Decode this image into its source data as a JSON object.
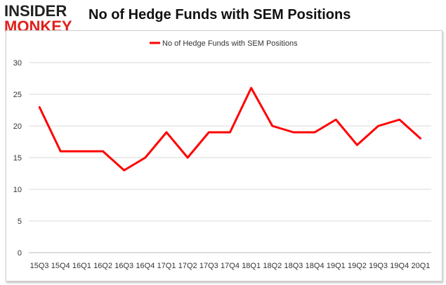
{
  "logo": {
    "line1": "INSIDER",
    "line2": "MONKEY"
  },
  "chart_data": {
    "type": "line",
    "title": "No of Hedge Funds with SEM Positions",
    "categories": [
      "15Q3",
      "15Q4",
      "16Q1",
      "16Q2",
      "16Q3",
      "16Q4",
      "17Q1",
      "17Q2",
      "17Q3",
      "17Q4",
      "18Q1",
      "18Q2",
      "18Q3",
      "18Q4",
      "19Q1",
      "19Q2",
      "19Q3",
      "19Q4",
      "20Q1"
    ],
    "series": [
      {
        "name": "No of Hedge Funds with SEM Positions",
        "values": [
          23,
          16,
          16,
          16,
          13,
          15,
          19,
          15,
          19,
          19,
          26,
          20,
          19,
          19,
          21,
          17,
          20,
          21,
          18
        ],
        "color": "#ff0000"
      }
    ],
    "ylim": [
      0,
      30
    ],
    "yticks": [
      0,
      5,
      10,
      15,
      20,
      25,
      30
    ],
    "grid": true,
    "legend": "top-center",
    "xlabel": "",
    "ylabel": ""
  }
}
